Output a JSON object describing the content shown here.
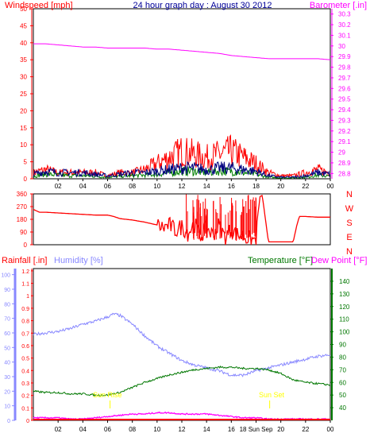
{
  "colors": {
    "background": "#ffffff",
    "plot_background": "#ffffff",
    "wind_speed": "#ff0000",
    "wind_avg": "#00007f",
    "wind_gust": "#008000",
    "barometer": "#ff00ff",
    "direction": "#ff0000",
    "rainfall": "#ff0000",
    "humidity": "#8888ff",
    "temperature": "#007700",
    "dew_point": "#ff00ff",
    "sun": "#ffff00",
    "title": "#000099"
  },
  "chart_data": [
    {
      "type": "line",
      "title": "24 hour graph day : August 30 2012",
      "ylabel_left": "Windspeed [mph]",
      "ylabel_right": "Barometer [.in]",
      "x_ticks": [
        "02",
        "04",
        "06",
        "08",
        "10",
        "12",
        "14",
        "16",
        "18",
        "20",
        "22",
        "00"
      ],
      "y_ticks_left": [
        "0",
        "5",
        "10",
        "15",
        "20",
        "25",
        "30",
        "35",
        "40",
        "45",
        "50"
      ],
      "y_ticks_right": [
        "28.8",
        "28.9",
        "29",
        "29.1",
        "29.2",
        "29.3",
        "29.4",
        "29.5",
        "29.6",
        "29.7",
        "29.8",
        "29.9",
        "30",
        "30.1",
        "30.2",
        "30.3"
      ],
      "ylim_left": [
        0,
        50
      ],
      "ylim_right": [
        28.75,
        30.35
      ],
      "xlim": [
        0,
        24
      ],
      "series": [
        {
          "axis": "right",
          "x": [
            0,
            1,
            2,
            3,
            4,
            5,
            6,
            7,
            8,
            9,
            10,
            11,
            12,
            13,
            14,
            15,
            16,
            17,
            18,
            19,
            20,
            21,
            22,
            23,
            24
          ],
          "values": [
            30.02,
            30.02,
            30.01,
            30.0,
            29.99,
            29.99,
            29.98,
            29.98,
            29.98,
            29.98,
            29.97,
            29.97,
            29.96,
            29.95,
            29.94,
            29.93,
            29.91,
            29.9,
            29.89,
            29.88,
            29.88,
            29.88,
            29.88,
            29.88,
            29.87
          ]
        },
        {
          "axis": "left",
          "x": [
            0,
            1,
            2,
            3,
            4,
            5,
            6,
            7,
            8,
            9,
            10,
            11,
            12,
            13,
            14,
            15,
            16,
            17,
            18,
            19,
            20,
            21,
            22,
            23,
            24
          ],
          "values": [
            2,
            3,
            2,
            2,
            2,
            2,
            1,
            2,
            2,
            3,
            5,
            7,
            9,
            8,
            7,
            8,
            9,
            7,
            5,
            2,
            1,
            1,
            2,
            3,
            2
          ]
        },
        {
          "axis": "left",
          "x": [
            0,
            1,
            2,
            3,
            4,
            5,
            6,
            7,
            8,
            9,
            10,
            11,
            12,
            13,
            14,
            15,
            16,
            17,
            18,
            19,
            20,
            21,
            22,
            23,
            24
          ],
          "values": [
            1.5,
            2.5,
            2,
            2,
            2,
            1.5,
            1,
            1.5,
            2,
            2,
            2.5,
            3,
            3.5,
            3.5,
            3,
            3.5,
            3.5,
            3,
            2.5,
            1,
            0.5,
            0.5,
            1,
            2,
            1.5
          ]
        },
        {
          "axis": "left",
          "x": [
            0,
            1,
            2,
            3,
            4,
            5,
            6,
            7,
            8,
            9,
            10,
            11,
            12,
            13,
            14,
            15,
            16,
            17,
            18,
            19,
            20,
            21,
            22,
            23,
            24
          ],
          "values": [
            0.8,
            1.5,
            1.2,
            1,
            1,
            0.8,
            0.5,
            0.8,
            1,
            1.2,
            1.5,
            2,
            2.5,
            2.5,
            2,
            2.5,
            2.5,
            2,
            1.5,
            0.5,
            0.3,
            0.3,
            0.5,
            1.2,
            0.8
          ]
        }
      ]
    },
    {
      "type": "line",
      "ylabel_right_labels": [
        "N",
        "W",
        "S",
        "E",
        "N"
      ],
      "x_ticks": [
        "02",
        "04",
        "06",
        "08",
        "10",
        "12",
        "14",
        "16",
        "18",
        "20",
        "22",
        "00"
      ],
      "y_ticks_left": [
        "0",
        "90",
        "180",
        "270",
        "360"
      ],
      "ylim": [
        0,
        360
      ],
      "xlim": [
        0,
        24
      ],
      "series": [
        {
          "x": [
            0,
            0.5,
            1,
            2,
            3,
            4,
            5,
            6,
            6.5,
            7,
            8,
            9,
            10,
            10.5,
            11,
            11.5,
            12,
            12.5,
            13,
            13.5,
            14,
            14.5,
            15,
            15.5,
            16,
            16.5,
            17,
            17.5,
            18,
            18.3,
            18.5,
            19,
            20,
            21,
            21.3,
            21.5,
            22,
            23,
            24
          ],
          "values": [
            250,
            230,
            230,
            225,
            220,
            215,
            210,
            210,
            200,
            185,
            175,
            160,
            140,
            120,
            140,
            100,
            130,
            80,
            150,
            60,
            120,
            70,
            140,
            50,
            110,
            70,
            60,
            40,
            30,
            340,
            350,
            20,
            20,
            20,
            140,
            200,
            200,
            195,
            195
          ]
        }
      ]
    },
    {
      "type": "line",
      "ylabel_left_1": "Rainfall [.in]",
      "ylabel_left_2": "Humidity [%]",
      "ylabel_right_1": "Temperature [°F]",
      "ylabel_right_2": "Dew Point [°F]",
      "annotations": [
        "Sun Rise",
        "Sun Set"
      ],
      "x_ticks": [
        "02",
        "04",
        "06",
        "08",
        "10",
        "12",
        "14",
        "16",
        "18 Sun Sep",
        "20",
        "22",
        "00"
      ],
      "y_ticks_rain": [
        "0",
        "0.1",
        "0.2",
        "0.3",
        "0.4",
        "0.5",
        "0.6",
        "0.7",
        "0.8",
        "0.9",
        "1",
        "1.1",
        "1.2"
      ],
      "y_ticks_humidity": [
        "0",
        "10",
        "20",
        "30",
        "40",
        "50",
        "60",
        "70",
        "80",
        "90",
        "100"
      ],
      "y_ticks_temp": [
        "40",
        "50",
        "60",
        "70",
        "80",
        "90",
        "100",
        "110",
        "120",
        "130",
        "140"
      ],
      "ylim_humidity": [
        0,
        100
      ],
      "ylim_temp": [
        30,
        150
      ],
      "xlim": [
        0,
        24
      ],
      "series": [
        {
          "axis": "humidity",
          "x": [
            0,
            1,
            2,
            3,
            4,
            5,
            6,
            6.5,
            7,
            8,
            9,
            10,
            11,
            12,
            13,
            14,
            15,
            16,
            17,
            18,
            19,
            20,
            21,
            22,
            23,
            24
          ],
          "values": [
            59,
            60,
            61,
            63,
            66,
            68,
            71,
            73,
            72,
            66,
            58,
            51,
            46,
            41,
            38,
            36,
            34,
            31,
            31,
            34,
            36,
            38,
            40,
            42,
            44,
            45
          ]
        },
        {
          "axis": "temp",
          "x": [
            0,
            1,
            2,
            3,
            4,
            5,
            6,
            7,
            8,
            9,
            10,
            11,
            12,
            13,
            14,
            15,
            16,
            17,
            18,
            19,
            20,
            21,
            22,
            23,
            24
          ],
          "values": [
            53,
            52,
            52,
            51,
            51,
            50,
            50,
            52,
            56,
            60,
            63,
            66,
            68,
            70,
            71,
            72,
            72,
            71,
            71,
            70,
            67,
            62,
            60,
            59,
            58
          ]
        },
        {
          "axis": "temp",
          "x": [
            0,
            1,
            2,
            3,
            4,
            5,
            6,
            7,
            8,
            9,
            10,
            11,
            12,
            13,
            14,
            15,
            16,
            17,
            18,
            19,
            20,
            21,
            22,
            23,
            24
          ],
          "values": [
            32,
            32,
            32,
            31,
            31,
            32,
            33,
            34,
            35,
            35,
            36,
            36,
            35,
            35,
            35,
            34,
            33,
            32,
            32,
            31,
            31,
            31,
            31,
            31,
            31
          ]
        },
        {
          "axis": "rain",
          "x": [
            0,
            24
          ],
          "values": [
            0,
            0
          ]
        }
      ],
      "sunrise_hour": 6.2,
      "sunset_hour": 19.1
    }
  ]
}
